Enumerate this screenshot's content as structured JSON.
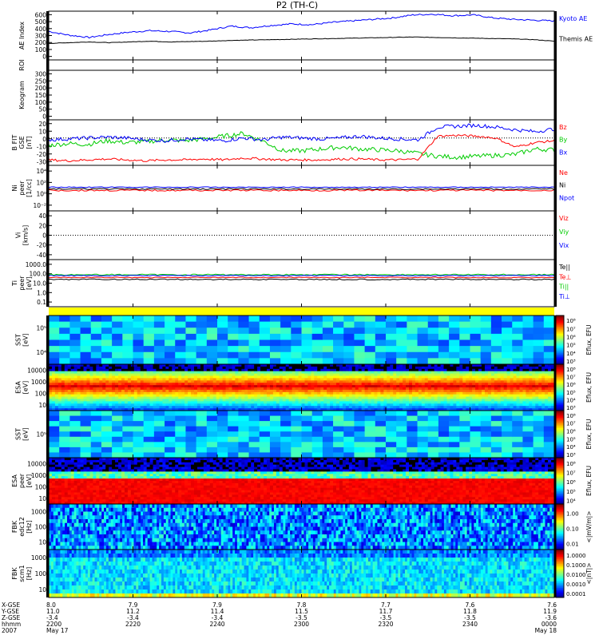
{
  "title": "P2 (TH-C)",
  "panels": [
    {
      "key": "ae",
      "ylabel": [
        "AE Index"
      ],
      "ticks": [
        "600",
        "500",
        "400",
        "300",
        "200",
        "100",
        "0"
      ],
      "legend": [
        {
          "text": "Kyoto AE",
          "color": "#0000ff"
        },
        {
          "text": "Themis AE",
          "color": "#000000"
        }
      ]
    },
    {
      "key": "roi",
      "ylabel": [
        "ROI"
      ],
      "ticks": []
    },
    {
      "key": "keo",
      "ylabel": [
        "Keogram"
      ],
      "ticks": [
        "300",
        "250",
        "200",
        "150",
        "100",
        "50",
        "0"
      ]
    },
    {
      "key": "bfield",
      "ylabel": [
        "B FIT",
        "GSE",
        "[nT]"
      ],
      "ticks": [
        "20",
        "10",
        "0",
        "-10",
        "-20",
        "-30"
      ],
      "legend": [
        {
          "text": "Bz",
          "color": "#ff0000"
        },
        {
          "text": "By",
          "color": "#00cc00"
        },
        {
          "text": "Bx",
          "color": "#0000ff"
        }
      ]
    },
    {
      "key": "density",
      "ylabel": [
        "Ni",
        "peer",
        "[1/cc]"
      ],
      "ticks": [
        "10⁴",
        "10²",
        "10⁰",
        "10⁻²"
      ],
      "legend": [
        {
          "text": "Ne",
          "color": "#ff0000"
        },
        {
          "text": "Ni",
          "color": "#000000"
        },
        {
          "text": "Npot",
          "color": "#0000ff"
        }
      ]
    },
    {
      "key": "vel",
      "ylabel": [
        "Vi",
        "[km/s]"
      ],
      "ticks": [
        "40",
        "20",
        "0",
        "-20",
        "-40"
      ],
      "legend": [
        {
          "text": "Viz",
          "color": "#ff0000"
        },
        {
          "text": "Viy",
          "color": "#00cc00"
        },
        {
          "text": "Vix",
          "color": "#0000ff"
        }
      ]
    },
    {
      "key": "temp",
      "ylabel": [
        "Ti",
        "peer",
        "[eV]"
      ],
      "ticks": [
        "1000.0",
        "100.0",
        "10.0",
        "1.0",
        "0.1"
      ],
      "legend": [
        {
          "text": "Te||",
          "color": "#000000"
        },
        {
          "text": "Te⊥",
          "color": "#ff0000"
        },
        {
          "text": "Ti||",
          "color": "#00cc00"
        },
        {
          "text": "Ti⊥",
          "color": "#0000ff"
        }
      ]
    },
    {
      "key": "sste",
      "ylabel": [
        "SST",
        "[eV]"
      ],
      "ticks": [
        "10⁵",
        "10⁴"
      ]
    },
    {
      "key": "esae",
      "ylabel": [
        "ESA",
        "[eV]"
      ],
      "ticks": [
        "10000",
        "1000",
        "100",
        "10"
      ]
    },
    {
      "key": "ssti",
      "ylabel": [
        "SST",
        "[eV]"
      ],
      "ticks": [
        "10⁵"
      ]
    },
    {
      "key": "esai",
      "ylabel": [
        "ESA",
        "peer",
        "[eV]"
      ],
      "ticks": [
        "10000",
        "1000",
        "100",
        "10"
      ]
    },
    {
      "key": "fbk1",
      "ylabel": [
        "FBK",
        "edc12",
        "[Hz]"
      ],
      "ticks": [
        "1000",
        "100",
        "10"
      ]
    },
    {
      "key": "fbk2",
      "ylabel": [
        "FBK",
        "scm1",
        "[Hz]"
      ],
      "ticks": [
        "1000",
        "100",
        "10"
      ]
    }
  ],
  "colorbars": [
    {
      "label": "Eflux, EFU",
      "ticks": [
        "10⁸",
        "10⁷",
        "10⁶",
        "10⁵",
        "10⁴",
        "10³"
      ]
    },
    {
      "label": "Eflux, EFU",
      "ticks": [
        "10⁸",
        "10⁷",
        "10⁶",
        "10⁵",
        "10⁴",
        "10³"
      ]
    },
    {
      "label": "Eflux, EFU",
      "ticks": [
        "10⁸",
        "10⁷",
        "10⁶",
        "10⁵",
        "10⁴",
        "10³"
      ]
    },
    {
      "label": "Eflux, EFU",
      "ticks": [
        "10⁸",
        "10⁷",
        "10⁶",
        "10⁵",
        "10⁴"
      ]
    },
    {
      "label": "<|mV/m|>",
      "ticks": [
        "1.00",
        "0.10",
        "0.01"
      ]
    },
    {
      "label": "<|nT|>",
      "ticks": [
        "1.0000",
        "0.1000",
        "0.0100",
        "0.0010",
        "0.0001"
      ]
    }
  ],
  "footer": {
    "row_labels": [
      "X-GSE",
      "Y-GSE",
      "Z-GSE",
      "hhmm",
      "2007"
    ],
    "columns": [
      {
        "x": "8.0",
        "y": "11.0",
        "z": "-3.4",
        "t": "2200",
        "d": "May 17"
      },
      {
        "x": "7.9",
        "y": "11.2",
        "z": "-3.4",
        "t": "2220",
        "d": ""
      },
      {
        "x": "7.9",
        "y": "11.4",
        "z": "-3.4",
        "t": "2240",
        "d": ""
      },
      {
        "x": "7.8",
        "y": "11.5",
        "z": "-3.5",
        "t": "2300",
        "d": ""
      },
      {
        "x": "7.7",
        "y": "11.7",
        "z": "-3.5",
        "t": "2320",
        "d": ""
      },
      {
        "x": "7.6",
        "y": "11.8",
        "z": "-3.5",
        "t": "2340",
        "d": ""
      },
      {
        "x": "7.6",
        "y": "11.9",
        "z": "-3.6",
        "t": "0000",
        "d": "May 18"
      }
    ]
  },
  "chart_data": {
    "type": "line",
    "time_ticks": [
      "2200",
      "2220",
      "2240",
      "2300",
      "2320",
      "2340",
      "0000"
    ],
    "ae": {
      "ylim": [
        0,
        650
      ],
      "kyoto": [
        380,
        330,
        300,
        340,
        370,
        390,
        380,
        360,
        400,
        450,
        430,
        460,
        480,
        470,
        500,
        520,
        540,
        560,
        600,
        610,
        590,
        600,
        560,
        540,
        530,
        520
      ],
      "themis": [
        220,
        230,
        240,
        230,
        240,
        250,
        240,
        245,
        250,
        260,
        265,
        270,
        275,
        280,
        285,
        290,
        295,
        300,
        305,
        300,
        295,
        290,
        285,
        280,
        270,
        250
      ]
    },
    "bfield": {
      "ylim": [
        -30,
        20
      ],
      "bz": [
        -24,
        -25,
        -24,
        -23,
        -24,
        -25,
        -24,
        -24,
        -23,
        -24,
        -22,
        -23,
        -24,
        -24,
        -24,
        -23,
        -23,
        -24,
        -24,
        -23,
        2,
        3,
        2,
        0,
        -10,
        -5,
        -3
      ],
      "by": [
        -8,
        -6,
        -7,
        -3,
        -5,
        -4,
        -2,
        -3,
        -1,
        2,
        5,
        -3,
        -14,
        -14,
        -12,
        -10,
        -12,
        -13,
        -14,
        -17,
        -20,
        -21,
        -20,
        -19,
        -18,
        -12,
        -13
      ],
      "bx": [
        -2,
        -1,
        0,
        1,
        0,
        -2,
        -3,
        -1,
        -2,
        -3,
        0,
        -2,
        1,
        0,
        -1,
        0,
        2,
        0,
        -1,
        -2,
        12,
        13,
        14,
        12,
        9,
        7,
        10
      ]
    },
    "density": {
      "ne": 1.0,
      "ni": 2.0,
      "npot": 5.0
    },
    "temp": {
      "teperp": 150,
      "tipar": 150,
      "tiperp": 120,
      "tepar": 40
    },
    "fbk1_range": [
      "10",
      "1000"
    ],
    "fbk2_range": [
      "10",
      "1000"
    ]
  }
}
